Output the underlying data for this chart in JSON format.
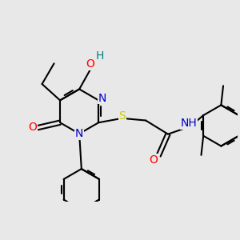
{
  "bg_color": "#e8e8e8",
  "bond_color": "#000000",
  "bond_width": 1.5,
  "atom_colors": {
    "N": "#0000cd",
    "O": "#ff0000",
    "S": "#cccc00",
    "H": "#008080",
    "C": "#000000"
  },
  "font_size": 9,
  "ring_r": 0.52,
  "bl": 0.6
}
